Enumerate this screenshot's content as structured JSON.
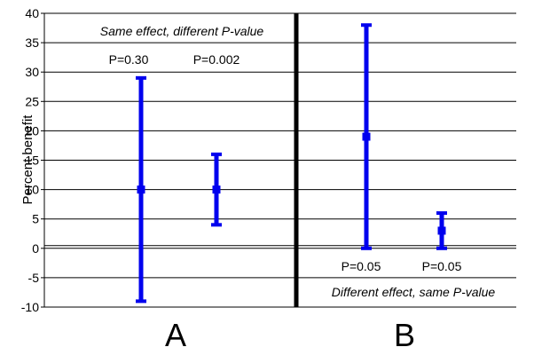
{
  "chart_data": {
    "type": "error-bar",
    "ylabel": "Percent benefit",
    "ylim": [
      -10,
      40
    ],
    "yticks": [
      -10,
      -5,
      0,
      5,
      10,
      15,
      20,
      25,
      30,
      35,
      40
    ],
    "grid": true,
    "panels": [
      {
        "label": "A",
        "annotation": "Same effect, different P-value",
        "points": [
          {
            "p_label": "P=0.30",
            "estimate": 10,
            "lower": -9,
            "upper": 29
          },
          {
            "p_label": "P=0.002",
            "estimate": 10,
            "lower": 4,
            "upper": 16
          }
        ]
      },
      {
        "label": "B",
        "annotation": "Different effect, same P-value",
        "points": [
          {
            "p_label": "P=0.05",
            "estimate": 19,
            "lower": 0,
            "upper": 38
          },
          {
            "p_label": "P=0.05",
            "estimate": 3,
            "lower": 0,
            "upper": 6
          }
        ]
      }
    ],
    "colors": {
      "marker": "#0000ee",
      "grid": "#000000",
      "divider": "#000000"
    }
  }
}
